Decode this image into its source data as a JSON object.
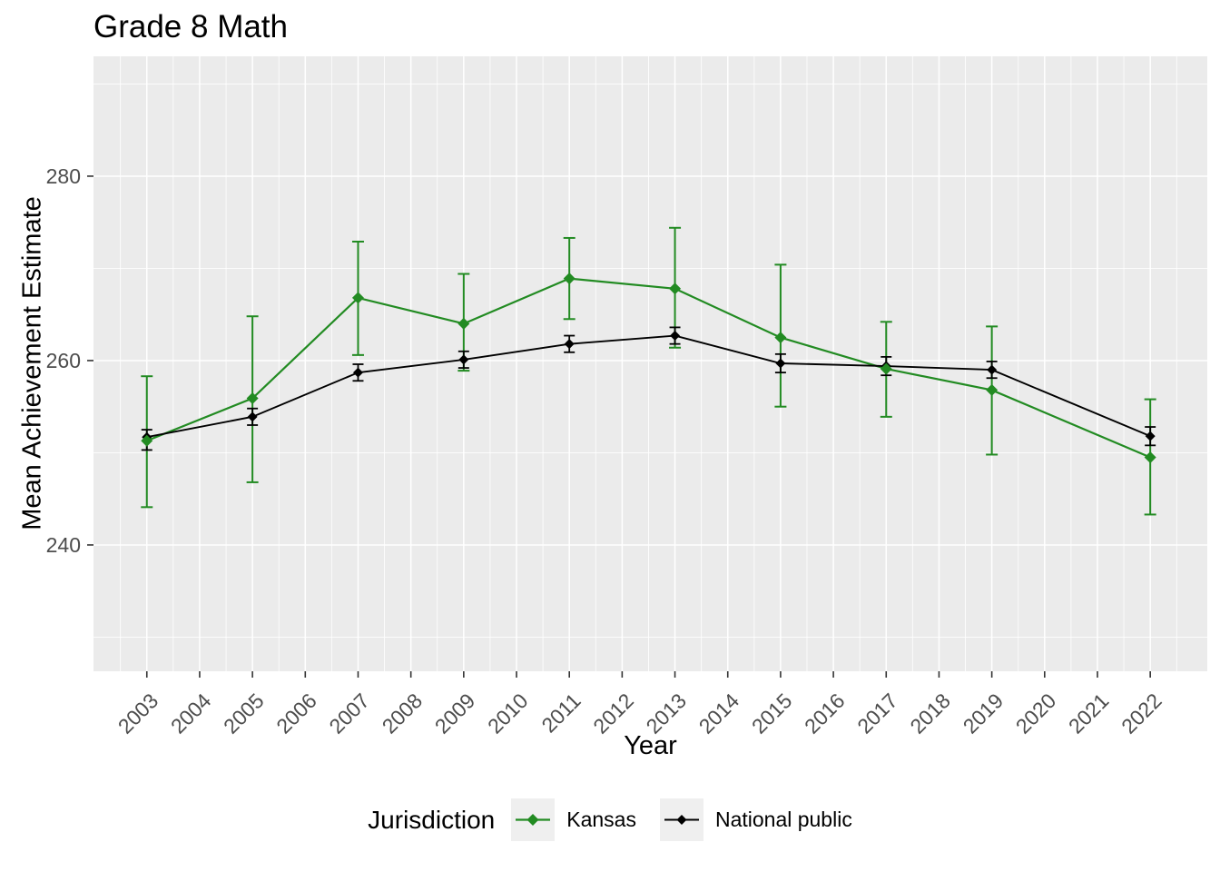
{
  "chart_data": {
    "type": "line",
    "title": "Grade 8 Math",
    "xlabel": "Year",
    "ylabel": "Mean Achievement Estimate",
    "legend_title": "Jurisdiction",
    "legend_position": "bottom",
    "grid": true,
    "panel_bg": "#EBEBEB",
    "grid_color": "#FFFFFF",
    "tick_color": "#333333",
    "tick_label_color": "#4D4D4D",
    "x_tick_labels": [
      2003,
      2004,
      2005,
      2006,
      2007,
      2008,
      2009,
      2010,
      2011,
      2012,
      2013,
      2014,
      2015,
      2016,
      2017,
      2018,
      2019,
      2020,
      2021,
      2022
    ],
    "x_tick_label_angle": 45,
    "y_ticks": [
      240,
      260,
      280
    ],
    "y_minor_ticks": [
      230,
      250,
      270,
      290
    ],
    "xlim": [
      2001.99,
      2023.08
    ],
    "ylim": [
      226.3,
      293.0
    ],
    "x": [
      2003,
      2005,
      2007,
      2009,
      2011,
      2013,
      2015,
      2017,
      2019,
      2022
    ],
    "series": [
      {
        "name": "Kansas",
        "color": "#228B22",
        "values": [
          251.3,
          255.9,
          266.8,
          264.0,
          268.9,
          267.8,
          262.5,
          259.1,
          256.8,
          249.5
        ],
        "err_low": [
          244.1,
          246.8,
          260.6,
          258.9,
          264.5,
          261.4,
          255.0,
          253.9,
          249.8,
          243.3
        ],
        "err_high": [
          258.3,
          264.8,
          272.9,
          269.4,
          273.3,
          274.4,
          270.4,
          264.2,
          263.7,
          255.8
        ]
      },
      {
        "name": "National public",
        "color": "#000000",
        "values": [
          251.7,
          253.9,
          258.7,
          260.1,
          261.8,
          262.7,
          259.7,
          259.4,
          259.0,
          251.8
        ],
        "err_low": [
          250.3,
          253.0,
          257.8,
          259.2,
          260.9,
          261.8,
          258.7,
          258.4,
          258.1,
          250.8
        ],
        "err_high": [
          252.5,
          254.8,
          259.6,
          261.0,
          262.7,
          263.6,
          260.7,
          260.4,
          259.9,
          252.8
        ]
      }
    ]
  }
}
